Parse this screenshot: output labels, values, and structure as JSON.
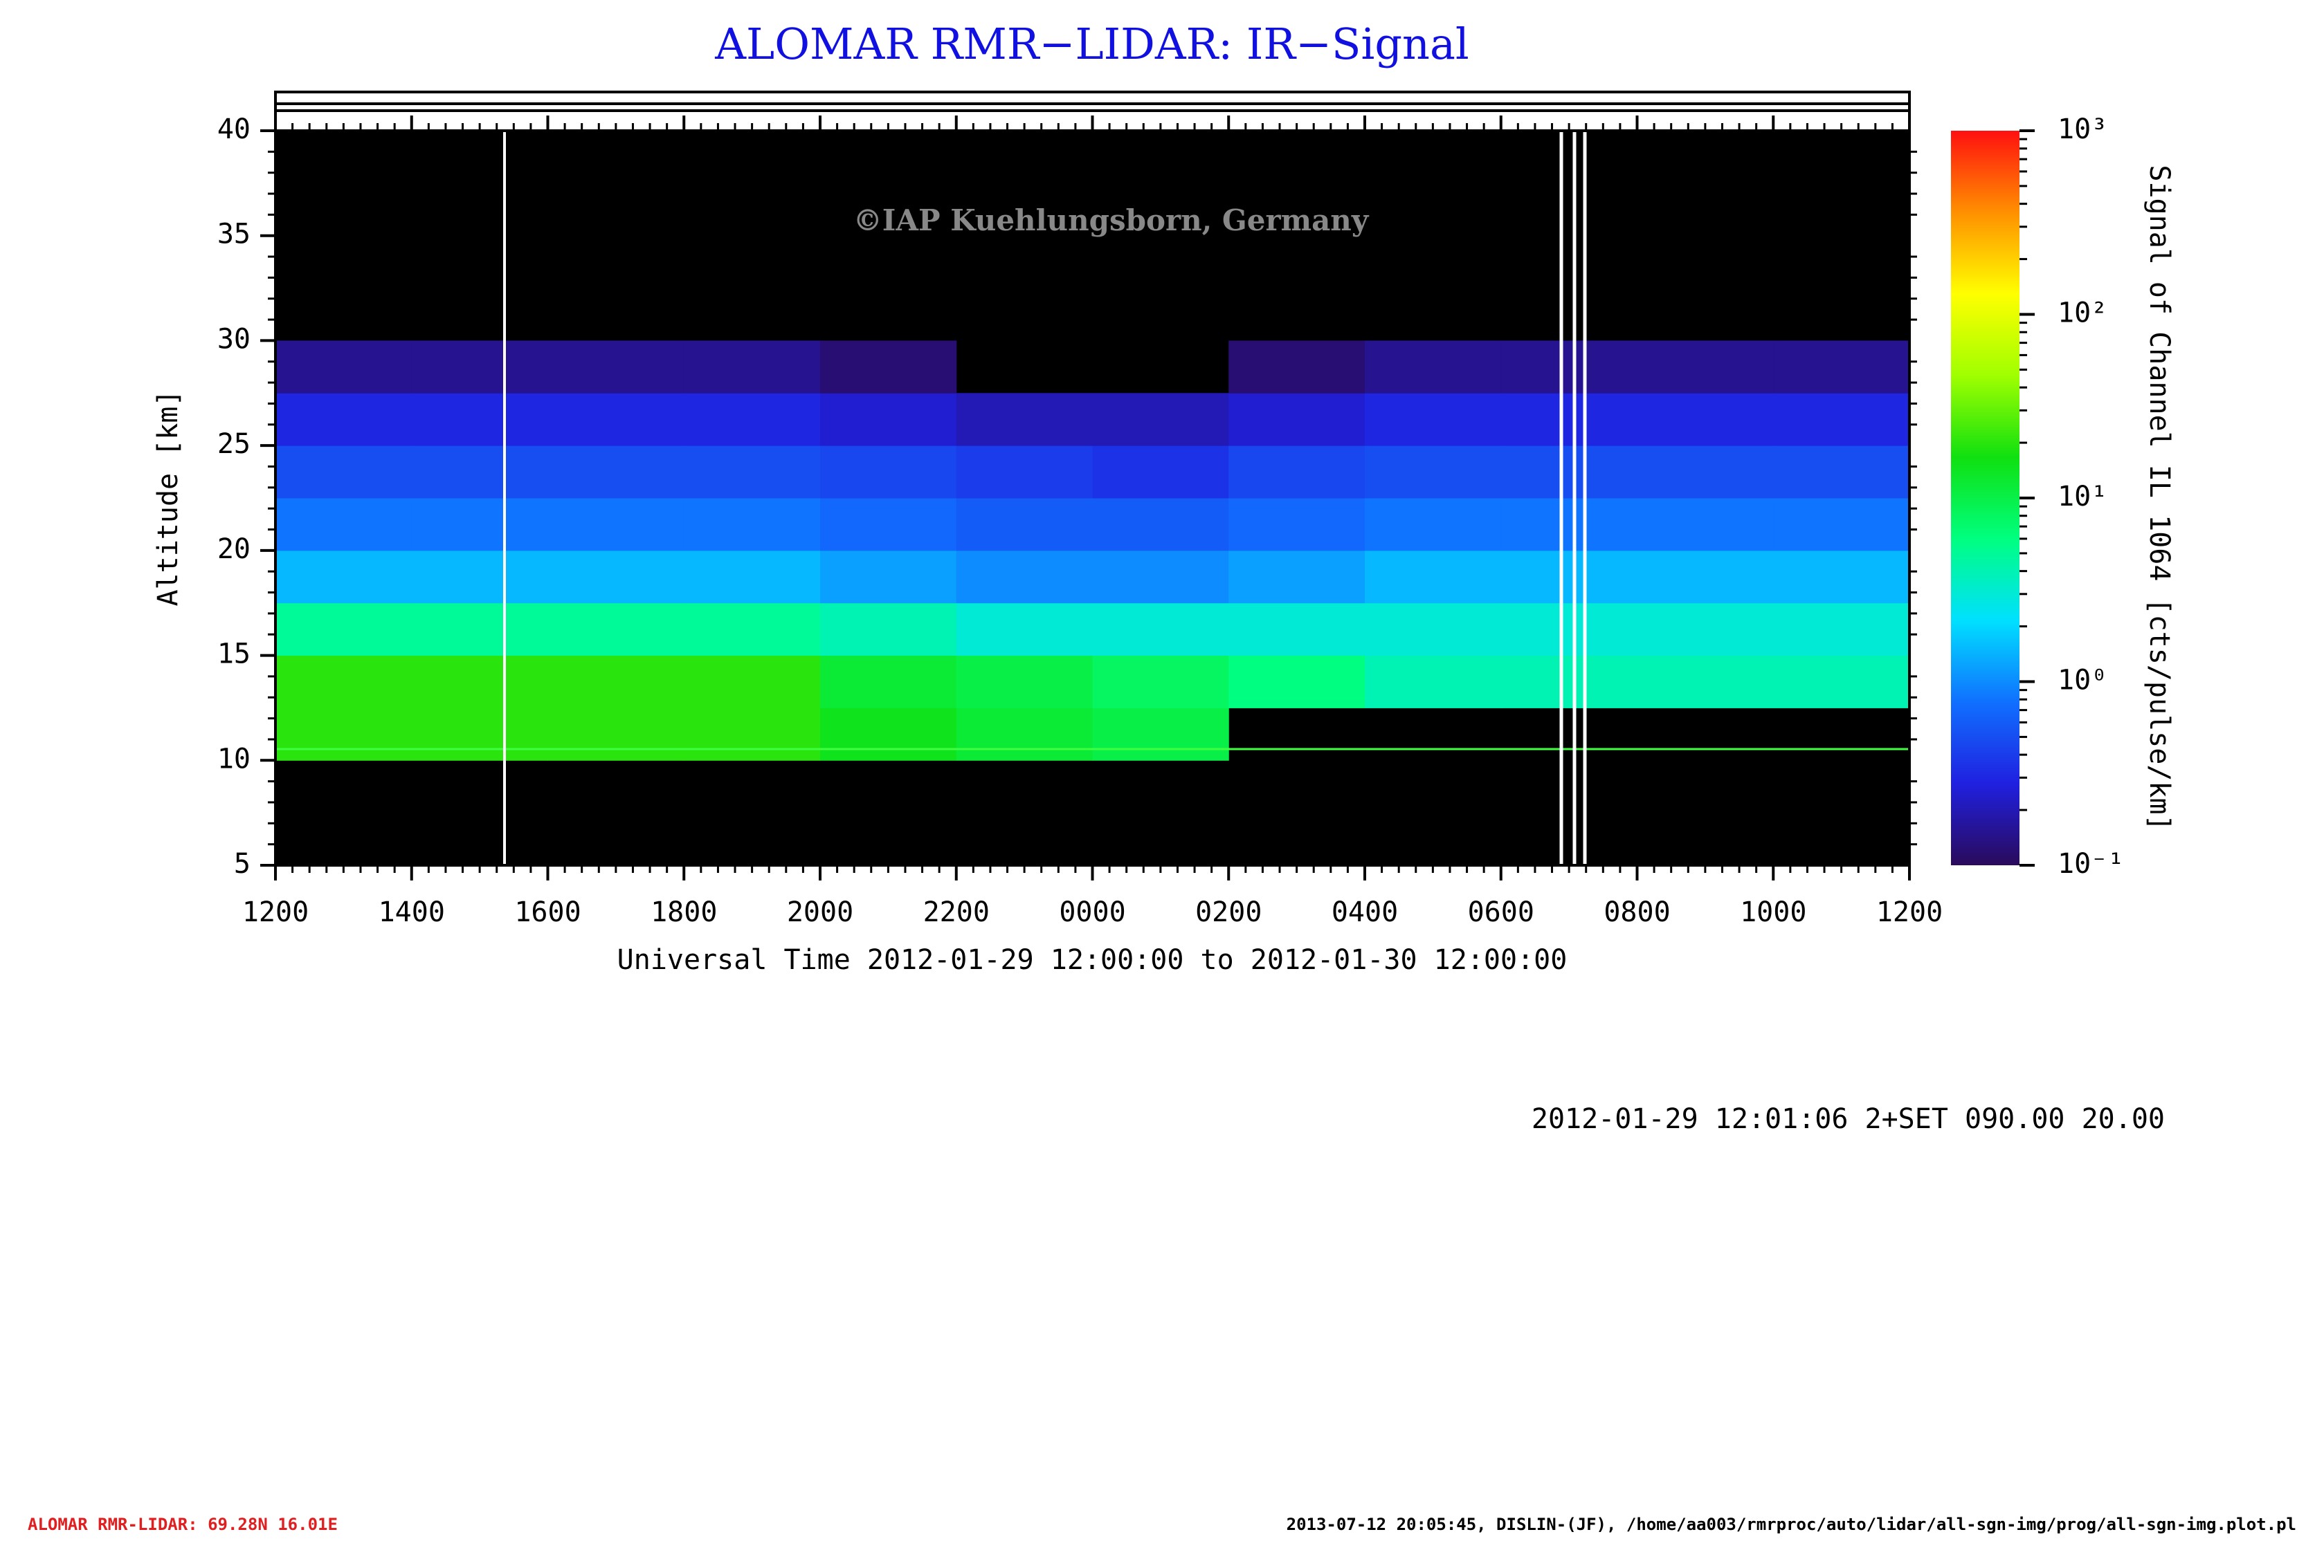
{
  "chart_data": {
    "type": "heatmap",
    "title": "ALOMAR RMR−LIDAR: IR−Signal",
    "watermark": "©IAP Kuehlungsborn, Germany",
    "xlabel": "Universal Time 2012-01-29 12:00:00 to 2012-01-30 12:00:00",
    "ylabel": "Altitude [km]",
    "colorbar_label": "Signal of Channel IL 1064 [cts/pulse/km]",
    "info": "2012-01-29 12:01:06 2+SET 090.00 20.00",
    "footer_left": "ALOMAR RMR-LIDAR: 69.28N 16.01E",
    "footer_right": "2013-07-12 20:05:45, DISLIN-(JF), /home/aa003/rmrproc/auto/lidar/all-sgn-img/prog/all-sgn-img.plot.pl",
    "xlim": [
      0,
      24
    ],
    "xticks": [
      {
        "value": 0,
        "label": "1200"
      },
      {
        "value": 2,
        "label": "1400"
      },
      {
        "value": 4,
        "label": "1600"
      },
      {
        "value": 6,
        "label": "1800"
      },
      {
        "value": 8,
        "label": "2000"
      },
      {
        "value": 10,
        "label": "2200"
      },
      {
        "value": 12,
        "label": "0000"
      },
      {
        "value": 14,
        "label": "0200"
      },
      {
        "value": 16,
        "label": "0400"
      },
      {
        "value": 18,
        "label": "0600"
      },
      {
        "value": 20,
        "label": "0800"
      },
      {
        "value": 22,
        "label": "1000"
      },
      {
        "value": 24,
        "label": "1200"
      }
    ],
    "ylim": [
      5,
      40
    ],
    "yticks": [
      5,
      10,
      15,
      20,
      25,
      30,
      35,
      40
    ],
    "zlim": [
      0.1,
      1000
    ],
    "zscale": "log",
    "zticks": [
      {
        "value": 0.1,
        "label": "10⁻¹"
      },
      {
        "value": 1,
        "label": "10⁰"
      },
      {
        "value": 10,
        "label": "10¹"
      },
      {
        "value": 100,
        "label": "10²"
      },
      {
        "value": 1000,
        "label": "10³"
      }
    ],
    "colormap": [
      "#2a0a5a",
      "#2020e0",
      "#1070ff",
      "#00e0ff",
      "#00ff80",
      "#10e010",
      "#a0ff00",
      "#ffff00",
      "#ff9000",
      "#ff1010"
    ],
    "xbins": [
      0,
      2,
      4,
      6,
      8,
      10,
      12,
      14,
      16,
      18,
      20,
      22,
      24
    ],
    "ybins": [
      5,
      7.5,
      10,
      12.5,
      15,
      17.5,
      20,
      22.5,
      25,
      27.5,
      30,
      32.5,
      35,
      37.5,
      40
    ],
    "z": [
      [
        null,
        null,
        20,
        20,
        5,
        1.5,
        0.8,
        0.5,
        0.3,
        0.15,
        null,
        null,
        null,
        null
      ],
      [
        null,
        null,
        20,
        20,
        5,
        1.5,
        0.8,
        0.5,
        0.3,
        0.15,
        null,
        null,
        null,
        null
      ],
      [
        null,
        null,
        20,
        20,
        5,
        1.5,
        0.8,
        0.5,
        0.3,
        0.15,
        null,
        null,
        null,
        null
      ],
      [
        null,
        null,
        20,
        20,
        5,
        1.5,
        0.8,
        0.5,
        0.3,
        0.15,
        null,
        null,
        null,
        null
      ],
      [
        null,
        null,
        15,
        12,
        4,
        1.2,
        0.7,
        0.45,
        0.25,
        0.12,
        null,
        null,
        null,
        null
      ],
      [
        null,
        null,
        12,
        10,
        3,
        1,
        0.6,
        0.4,
        0.2,
        null,
        null,
        null,
        null,
        null
      ],
      [
        null,
        null,
        10,
        8,
        3,
        1,
        0.6,
        0.35,
        0.2,
        null,
        null,
        null,
        null,
        null
      ],
      [
        null,
        null,
        null,
        6,
        3,
        1.2,
        0.7,
        0.45,
        0.25,
        0.12,
        null,
        null,
        null,
        null
      ],
      [
        null,
        null,
        null,
        4,
        3,
        1.5,
        0.8,
        0.5,
        0.3,
        0.15,
        null,
        null,
        null,
        null
      ],
      [
        null,
        null,
        null,
        4,
        3,
        1.5,
        0.8,
        0.5,
        0.3,
        0.15,
        null,
        null,
        null,
        null
      ],
      [
        null,
        null,
        null,
        4,
        3,
        1.5,
        0.8,
        0.5,
        0.3,
        0.15,
        null,
        null,
        null,
        null
      ],
      [
        null,
        null,
        null,
        4,
        3,
        1.5,
        0.8,
        0.5,
        0.3,
        0.15,
        null,
        null,
        null,
        null
      ]
    ]
  }
}
